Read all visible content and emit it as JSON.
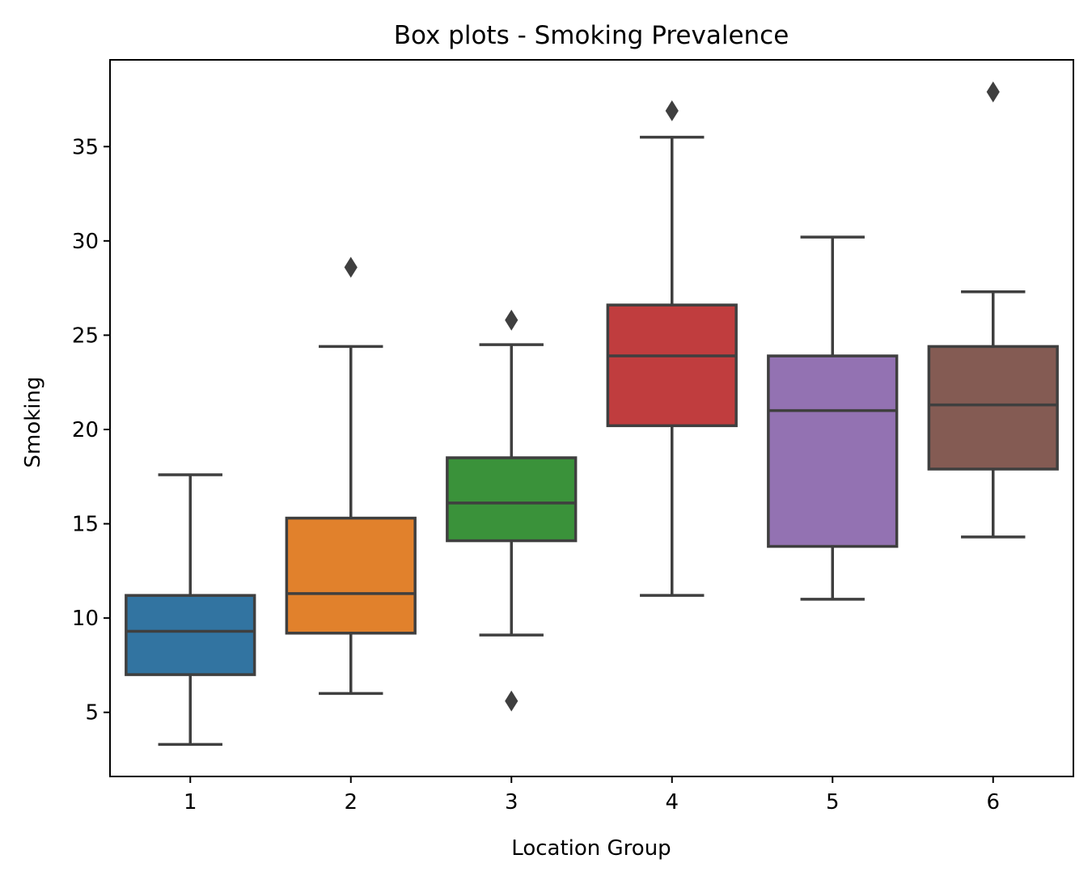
{
  "chart_data": {
    "type": "box",
    "title": "Box plots - Smoking Prevalence",
    "xlabel": "Location Group",
    "ylabel": "Smoking",
    "categories": [
      "1",
      "2",
      "3",
      "4",
      "5",
      "6"
    ],
    "yticks": [
      5,
      10,
      15,
      20,
      25,
      30,
      35
    ],
    "ylim": [
      1.6,
      39.6
    ],
    "grid": false,
    "line_color": "#3f3f3f",
    "boxes": [
      {
        "category": "1",
        "color": "#3274a1",
        "whisker_low": 3.3,
        "q1": 7.0,
        "median": 9.3,
        "q3": 11.2,
        "whisker_high": 17.6,
        "outliers": []
      },
      {
        "category": "2",
        "color": "#e1812c",
        "whisker_low": 6.0,
        "q1": 9.2,
        "median": 11.3,
        "q3": 15.3,
        "whisker_high": 24.4,
        "outliers": [
          28.6
        ]
      },
      {
        "category": "3",
        "color": "#3a923a",
        "whisker_low": 9.1,
        "q1": 14.1,
        "median": 16.1,
        "q3": 18.5,
        "whisker_high": 24.5,
        "outliers": [
          25.8,
          5.6
        ]
      },
      {
        "category": "4",
        "color": "#c03d3e",
        "whisker_low": 11.2,
        "q1": 20.2,
        "median": 23.9,
        "q3": 26.6,
        "whisker_high": 35.5,
        "outliers": [
          36.9
        ]
      },
      {
        "category": "5",
        "color": "#9372b2",
        "whisker_low": 11.0,
        "q1": 13.8,
        "median": 21.0,
        "q3": 23.9,
        "whisker_high": 30.2,
        "outliers": []
      },
      {
        "category": "6",
        "color": "#845b53",
        "whisker_low": 14.3,
        "q1": 17.9,
        "median": 21.3,
        "q3": 24.4,
        "whisker_high": 27.3,
        "outliers": [
          37.9
        ]
      }
    ]
  }
}
